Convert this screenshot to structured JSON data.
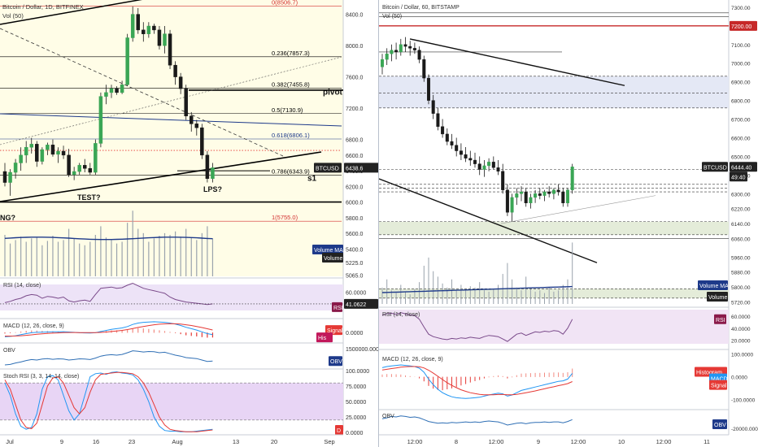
{
  "left": {
    "title": "Bitcoin / Dollar, 1D, BITFINEX",
    "vol_label": "Vol (50)",
    "price_ticks": [
      "8400.0",
      "8000.0",
      "7600.0",
      "7200.0",
      "6800.0",
      "6600.0",
      "6400.0",
      "6200.0",
      "6000.0",
      "5800.0",
      "5600.0",
      "5400.0",
      "5225.0",
      "5065.0"
    ],
    "symbol_tag": "BTCUSD",
    "last_price": "6438.6",
    "fib_levels": [
      {
        "label": "0(8506.7)",
        "color": "#d32f2f"
      },
      {
        "label": "0.236(7857.3)",
        "color": "#000000"
      },
      {
        "label": "0.382(7455.8)",
        "color": "#000000"
      },
      {
        "label": "0.5(7130.9)",
        "color": "#000000"
      },
      {
        "label": "0.618(6806.1)",
        "color": "#1e3a8a"
      },
      {
        "label": "0.786(6343.9)",
        "color": "#000000"
      },
      {
        "label": "1(5755.0)",
        "color": "#d32f2f"
      }
    ],
    "annotations": [
      "pivot",
      "s1",
      "TEST?",
      "LPS?",
      "NG?"
    ],
    "volume_ma_tag": "Volume MA",
    "volume_tag": "Volume",
    "rsi_label": "RSI (14, close)",
    "rsi_ticks": [
      "60.0000"
    ],
    "rsi_value": "41.0622",
    "rsi_tag": "RSI",
    "macd_label": "MACD (12, 26, close, 9)",
    "macd_ticks": [
      "0.0000"
    ],
    "macd_tags": [
      "Signal",
      "His"
    ],
    "obv_label": "OBV",
    "obv_ticks": [
      "1500000.0000"
    ],
    "obv_tag": "OBV",
    "stoch_label": "Stoch RSI (3, 3, 14, 14, close)",
    "stoch_ticks": [
      "100.0000",
      "75.0000",
      "50.0000",
      "25.0000",
      "0.0000"
    ],
    "stoch_tag": "D",
    "x_ticks": [
      "Jul",
      "9",
      "16",
      "23",
      "Aug",
      "13",
      "20",
      "Sep"
    ]
  },
  "right": {
    "title": "Bitcoin / Dollar, 60, BITSTAMP",
    "vol_label": "Vol (50)",
    "price_ticks": [
      "7300.00",
      "7200.00",
      "7100.00",
      "7000.00",
      "6900.00",
      "6800.00",
      "6700.00",
      "6600.00",
      "6500.00",
      "6400.00",
      "6300.00",
      "6220.00",
      "6140.00",
      "6060.00",
      "5960.00",
      "5880.00",
      "5800.00",
      "5720.00"
    ],
    "red_tag": "7200.00",
    "symbol_tag": "BTCUSD",
    "last_price": "6444.40",
    "countdown": "49:40",
    "volume_ma_tag": "Volume MA",
    "volume_tag": "Volume",
    "rsi_label": "RSI (14, close)",
    "rsi_ticks": [
      "60.0000",
      "40.0000",
      "20.0000"
    ],
    "rsi_tag": "RSI",
    "macd_label": "MACD (12, 26, close, 9)",
    "macd_ticks": [
      "100.0000",
      "0.0000",
      "-100.0000"
    ],
    "macd_tags": [
      "Histogram",
      "MACD",
      "Signal"
    ],
    "obv_label": "OBV",
    "obv_ticks": [
      "-20000.0000"
    ],
    "obv_tag": "OBV",
    "x_ticks": [
      "12:00",
      "8",
      "12:00",
      "9",
      "12:00",
      "10",
      "12:00",
      "11"
    ]
  },
  "chart_data": [
    {
      "type": "candlestick",
      "title": "Bitcoin / Dollar, 1D, BITFINEX",
      "ylim": [
        5050,
        8500
      ],
      "x_ticks": [
        "Jul",
        "9",
        "16",
        "23",
        "Aug",
        "13",
        "20",
        "Sep"
      ],
      "ohlc": [
        [
          6390,
          6500,
          6200,
          6250
        ],
        [
          6250,
          6420,
          6080,
          6380
        ],
        [
          6380,
          6550,
          6300,
          6500
        ],
        [
          6500,
          6700,
          6400,
          6600
        ],
        [
          6600,
          6780,
          6500,
          6700
        ],
        [
          6700,
          6820,
          6620,
          6740
        ],
        [
          6740,
          6780,
          6450,
          6520
        ],
        [
          6520,
          6700,
          6480,
          6670
        ],
        [
          6670,
          6760,
          6600,
          6730
        ],
        [
          6730,
          6800,
          6580,
          6610
        ],
        [
          6610,
          6700,
          6500,
          6650
        ],
        [
          6650,
          6720,
          6550,
          6600
        ],
        [
          6600,
          6680,
          6320,
          6350
        ],
        [
          6350,
          6450,
          6280,
          6390
        ],
        [
          6390,
          6500,
          6350,
          6470
        ],
        [
          6470,
          6550,
          6380,
          6430
        ],
        [
          6430,
          6500,
          6350,
          6380
        ],
        [
          6380,
          6800,
          6350,
          6750
        ],
        [
          6750,
          7400,
          6700,
          7350
        ],
        [
          7350,
          7500,
          7250,
          7400
        ],
        [
          7400,
          7500,
          7330,
          7450
        ],
        [
          7450,
          7480,
          7370,
          7400
        ],
        [
          7400,
          7550,
          7380,
          7500
        ],
        [
          7500,
          8150,
          7480,
          8100
        ],
        [
          8100,
          8500,
          8050,
          8400
        ],
        [
          8400,
          8480,
          8150,
          8200
        ],
        [
          8200,
          8300,
          8050,
          8150
        ],
        [
          8150,
          8300,
          8100,
          8250
        ],
        [
          8250,
          8280,
          8150,
          8200
        ],
        [
          8200,
          8250,
          7950,
          8000
        ],
        [
          8000,
          8250,
          7900,
          8150
        ],
        [
          8150,
          8200,
          7700,
          7750
        ],
        [
          7750,
          7800,
          7500,
          7600
        ],
        [
          7600,
          7650,
          7380,
          7450
        ],
        [
          7450,
          7500,
          7050,
          7100
        ],
        [
          7100,
          7150,
          6900,
          7000
        ],
        [
          7000,
          7050,
          6850,
          6950
        ],
        [
          6950,
          7000,
          6550,
          6600
        ],
        [
          6600,
          6650,
          6250,
          6300
        ],
        [
          6300,
          6500,
          6250,
          6438
        ]
      ],
      "volume": [
        48,
        38,
        42,
        46,
        40,
        44,
        45,
        36,
        41,
        47,
        40,
        42,
        55,
        44,
        38,
        36,
        40,
        48,
        58,
        45,
        42,
        38,
        40,
        62,
        76,
        55,
        50,
        40,
        44,
        47,
        50,
        48,
        52,
        46,
        55,
        45,
        42,
        50,
        58,
        44
      ],
      "rsi": [
        43,
        45,
        48,
        50,
        54,
        56,
        55,
        50,
        53,
        52,
        50,
        52,
        46,
        44,
        46,
        47,
        45,
        56,
        66,
        67,
        68,
        66,
        67,
        71,
        74,
        70,
        66,
        64,
        62,
        60,
        58,
        52,
        48,
        46,
        44,
        43,
        42,
        41,
        40,
        41.0622
      ],
      "rsi_ylim": [
        20,
        80
      ],
      "macd": [
        -120,
        -110,
        -90,
        -60,
        -30,
        -5,
        5,
        10,
        15,
        20,
        22,
        25,
        15,
        5,
        -5,
        -10,
        -12,
        -5,
        30,
        60,
        90,
        110,
        130,
        170,
        230,
        270,
        290,
        300,
        305,
        300,
        290,
        270,
        240,
        200,
        150,
        110,
        70,
        20,
        -30,
        -60
      ],
      "macd_signal": [
        -100,
        -100,
        -98,
        -90,
        -80,
        -65,
        -50,
        -38,
        -27,
        -17,
        -9,
        -2,
        1,
        2,
        0,
        -2,
        -4,
        -4,
        3,
        14,
        29,
        45,
        62,
        84,
        113,
        144,
        173,
        198,
        220,
        236,
        247,
        251,
        249,
        239,
        221,
        199,
        173,
        143,
        108,
        74
      ],
      "macd_ylim": [
        -250,
        350
      ],
      "obv": [
        10,
        12,
        18,
        22,
        28,
        32,
        30,
        34,
        36,
        33,
        35,
        34,
        30,
        32,
        35,
        34,
        32,
        38,
        46,
        50,
        52,
        50,
        53,
        60,
        68,
        66,
        63,
        65,
        64,
        60,
        62,
        56,
        50,
        46,
        40,
        38,
        36,
        30,
        24,
        26
      ],
      "obv_ylim": [
        0,
        80
      ],
      "stoch_k": [
        80,
        60,
        30,
        10,
        5,
        8,
        30,
        70,
        90,
        92,
        85,
        60,
        35,
        20,
        30,
        60,
        90,
        95,
        96,
        94,
        97,
        98,
        96,
        95,
        93,
        85,
        70,
        50,
        25,
        10,
        3,
        2,
        2,
        1,
        1,
        1,
        2,
        3,
        4,
        5
      ],
      "stoch_d": [
        85,
        70,
        45,
        20,
        8,
        6,
        15,
        45,
        75,
        88,
        90,
        80,
        60,
        40,
        30,
        40,
        65,
        85,
        94,
        95,
        96,
        97,
        97,
        96,
        95,
        90,
        80,
        65,
        45,
        25,
        12,
        5,
        3,
        2,
        1,
        1,
        1,
        2,
        3,
        4
      ],
      "stoch_ylim": [
        0,
        100
      ]
    },
    {
      "type": "candlestick",
      "title": "Bitcoin / Dollar, 60, BITSTAMP",
      "ylim": [
        5700,
        7330
      ],
      "x_ticks": [
        "12:00",
        "8",
        "12:00",
        "9",
        "12:00",
        "10",
        "12:00",
        "11"
      ],
      "ohlc": [
        [
          6980,
          7050,
          6940,
          7020
        ],
        [
          7020,
          7080,
          6990,
          7050
        ],
        [
          7050,
          7100,
          7010,
          7070
        ],
        [
          7070,
          7110,
          7020,
          7060
        ],
        [
          7060,
          7130,
          7040,
          7100
        ],
        [
          7100,
          7140,
          7060,
          7090
        ],
        [
          7090,
          7120,
          7040,
          7080
        ],
        [
          7080,
          7110,
          7050,
          7070
        ],
        [
          7070,
          7090,
          7000,
          7020
        ],
        [
          7020,
          7040,
          6900,
          6920
        ],
        [
          6920,
          6940,
          6780,
          6800
        ],
        [
          6800,
          6830,
          6700,
          6730
        ],
        [
          6730,
          6760,
          6640,
          6660
        ],
        [
          6660,
          6700,
          6600,
          6620
        ],
        [
          6620,
          6650,
          6560,
          6580
        ],
        [
          6580,
          6620,
          6540,
          6560
        ],
        [
          6560,
          6600,
          6500,
          6530
        ],
        [
          6530,
          6570,
          6480,
          6510
        ],
        [
          6510,
          6550,
          6470,
          6490
        ],
        [
          6490,
          6530,
          6450,
          6480
        ],
        [
          6480,
          6520,
          6440,
          6460
        ],
        [
          6460,
          6500,
          6400,
          6430
        ],
        [
          6430,
          6480,
          6390,
          6450
        ],
        [
          6450,
          6490,
          6420,
          6470
        ],
        [
          6470,
          6500,
          6430,
          6440
        ],
        [
          6440,
          6480,
          6400,
          6420
        ],
        [
          6420,
          6460,
          6300,
          6320
        ],
        [
          6320,
          6350,
          6180,
          6200
        ],
        [
          6200,
          6300,
          6150,
          6280
        ],
        [
          6280,
          6330,
          6240,
          6300
        ],
        [
          6300,
          6340,
          6260,
          6310
        ],
        [
          6310,
          6330,
          6230,
          6250
        ],
        [
          6250,
          6300,
          6220,
          6280
        ],
        [
          6280,
          6320,
          6250,
          6300
        ],
        [
          6300,
          6330,
          6270,
          6290
        ],
        [
          6290,
          6320,
          6260,
          6310
        ],
        [
          6310,
          6340,
          6280,
          6300
        ],
        [
          6300,
          6330,
          6270,
          6320
        ],
        [
          6320,
          6350,
          6290,
          6310
        ],
        [
          6310,
          6330,
          6230,
          6250
        ],
        [
          6250,
          6330,
          6230,
          6320
        ],
        [
          6320,
          6460,
          6300,
          6444
        ]
      ],
      "volume": [
        12,
        18,
        10,
        8,
        14,
        9,
        7,
        11,
        16,
        28,
        34,
        24,
        20,
        15,
        12,
        18,
        10,
        14,
        11,
        13,
        12,
        16,
        10,
        9,
        11,
        14,
        22,
        30,
        18,
        12,
        10,
        20,
        11,
        9,
        10,
        8,
        12,
        9,
        10,
        14,
        18,
        45
      ],
      "rsi": [
        62,
        64,
        65,
        63,
        66,
        64,
        62,
        61,
        55,
        42,
        30,
        26,
        24,
        22,
        21,
        23,
        22,
        24,
        23,
        25,
        24,
        23,
        26,
        28,
        27,
        26,
        22,
        18,
        24,
        30,
        32,
        28,
        31,
        34,
        33,
        35,
        34,
        36,
        35,
        30,
        40,
        55
      ],
      "rsi_ylim": [
        10,
        75
      ],
      "macd": [
        40,
        45,
        48,
        50,
        52,
        50,
        48,
        45,
        38,
        20,
        -10,
        -35,
        -55,
        -70,
        -80,
        -88,
        -92,
        -94,
        -95,
        -94,
        -92,
        -90,
        -85,
        -80,
        -76,
        -72,
        -75,
        -85,
        -80,
        -70,
        -60,
        -55,
        -50,
        -45,
        -40,
        -35,
        -30,
        -25,
        -20,
        -18,
        -10,
        15
      ],
      "macd_signal": [
        30,
        33,
        36,
        39,
        42,
        44,
        45,
        45,
        44,
        39,
        29,
        16,
        2,
        -12,
        -26,
        -38,
        -48,
        -57,
        -64,
        -70,
        -74,
        -77,
        -79,
        -79,
        -79,
        -78,
        -78,
        -79,
        -79,
        -77,
        -74,
        -70,
        -66,
        -62,
        -57,
        -53,
        -48,
        -44,
        -39,
        -35,
        -30,
        -21
      ],
      "macd_ylim": [
        -130,
        120
      ],
      "obv": [
        50,
        52,
        55,
        54,
        56,
        55,
        53,
        54,
        52,
        48,
        44,
        42,
        40,
        41,
        40,
        42,
        41,
        42,
        43,
        42,
        43,
        42,
        44,
        45,
        44,
        43,
        40,
        36,
        38,
        40,
        41,
        39,
        41,
        42,
        42,
        43,
        42,
        43,
        43,
        41,
        44,
        48
      ],
      "obv_ylim": [
        20,
        70
      ]
    }
  ]
}
